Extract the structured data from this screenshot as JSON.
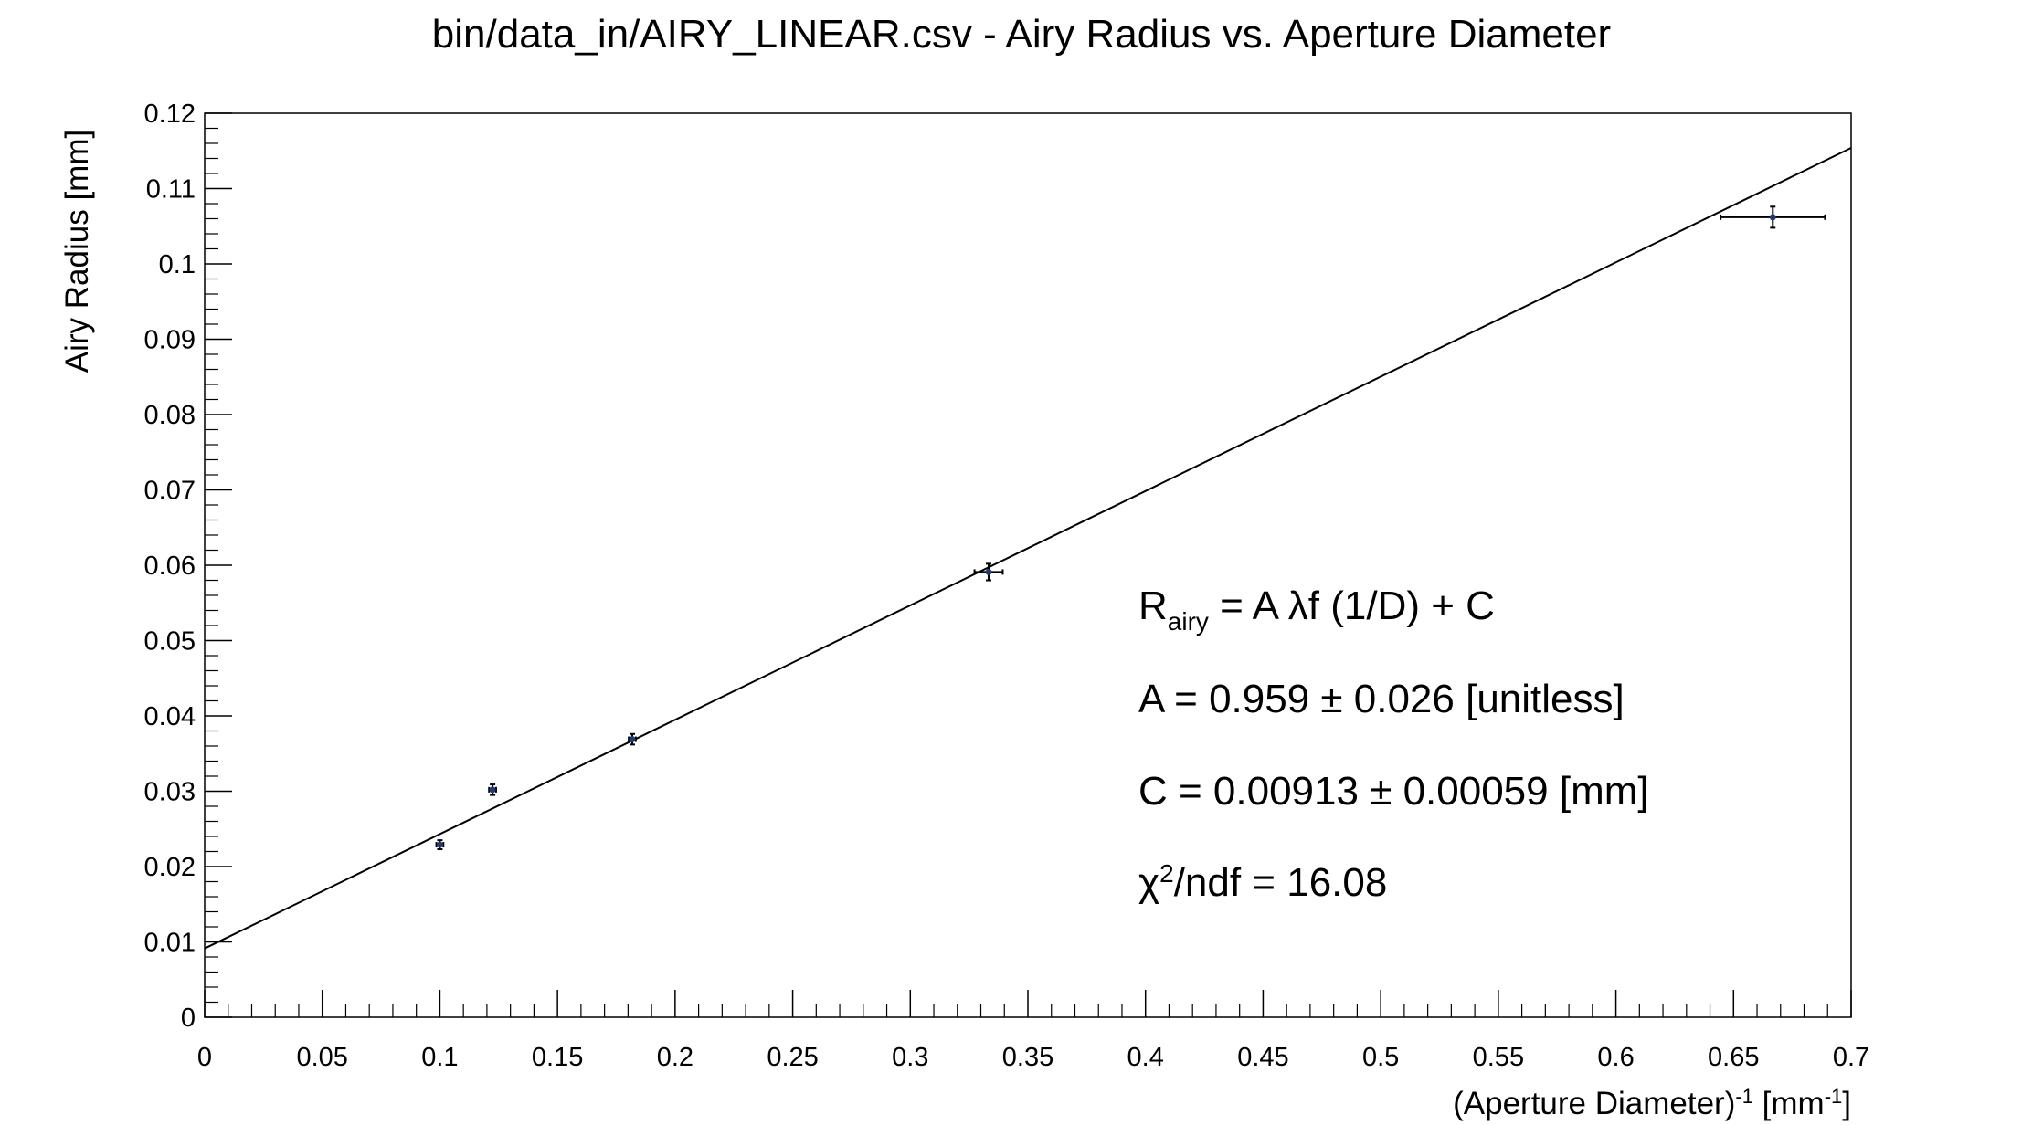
{
  "chart_data": {
    "type": "scatter",
    "title": "bin/data_in/AIRY_LINEAR.csv - Airy Radius vs. Aperture Diameter",
    "xlabel": {
      "base": "(Aperture Diameter)",
      "sup": "-1",
      "mid": " [mm",
      "sup2": "-1",
      "end": "]"
    },
    "ylabel": "Airy Radius [mm]",
    "xlim": [
      0,
      0.7
    ],
    "ylim": [
      0,
      0.12
    ],
    "x_ticks": [
      "0",
      "0.05",
      "0.1",
      "0.15",
      "0.2",
      "0.25",
      "0.3",
      "0.35",
      "0.4",
      "0.45",
      "0.5",
      "0.55",
      "0.6",
      "0.65",
      "0.7"
    ],
    "y_ticks": [
      "0",
      "0.01",
      "0.02",
      "0.03",
      "0.04",
      "0.05",
      "0.06",
      "0.07",
      "0.08",
      "0.09",
      "0.1",
      "0.11",
      "0.12"
    ],
    "grid": false,
    "points": [
      {
        "x": 0.1,
        "y": 0.0229,
        "xerr": 0.0015,
        "yerr": 0.0006
      },
      {
        "x": 0.1224,
        "y": 0.0302,
        "xerr": 0.0015,
        "yerr": 0.0007
      },
      {
        "x": 0.1818,
        "y": 0.0369,
        "xerr": 0.0015,
        "yerr": 0.0007
      },
      {
        "x": 0.3333,
        "y": 0.0591,
        "xerr": 0.006,
        "yerr": 0.0011
      },
      {
        "x": 0.6667,
        "y": 0.1062,
        "xerr": 0.0222,
        "yerr": 0.0014
      }
    ],
    "fit_line": {
      "slope": 0.1518,
      "intercept": 0.00913
    },
    "annotations": {
      "formula": {
        "r": "R",
        "sub": "airy",
        "rest": " = A λf (1/D) + C"
      },
      "a_value": "A = 0.959 ± 0.026 [unitless]",
      "c_value": "C = 0.00913 ± 0.00059 [mm]",
      "chi2": {
        "chi": "χ",
        "sup": "2",
        "rest": "/ndf = 16.08"
      }
    }
  },
  "colors": {
    "axis": "#000000",
    "line": "#000000",
    "marker": "#1f3b73"
  }
}
